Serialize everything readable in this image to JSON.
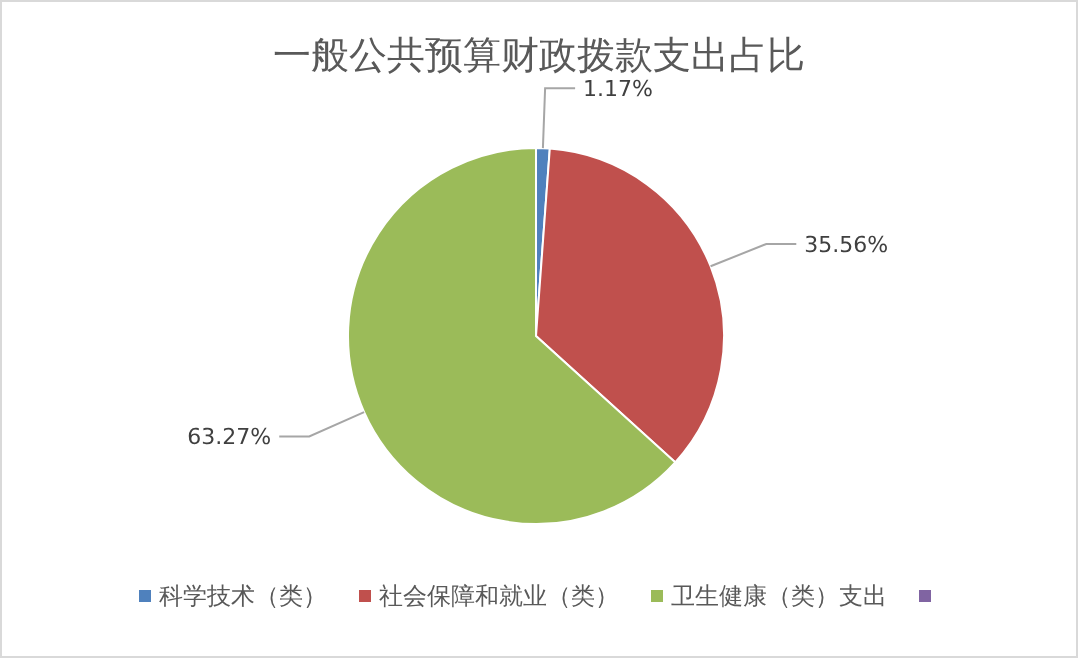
{
  "chart_data": {
    "type": "pie",
    "title": "一般公共预算财政拨款支出占比",
    "categories": [
      "科学技术（类）",
      "社会保障和就业（类）",
      "卫生健康（类）支出"
    ],
    "values": [
      1.17,
      35.56,
      63.27
    ],
    "colors": [
      "#4f81bd",
      "#c0504d",
      "#9bbb59"
    ],
    "value_labels": [
      "1.17%",
      "35.56%",
      "63.27%"
    ],
    "legend": "bottom"
  }
}
